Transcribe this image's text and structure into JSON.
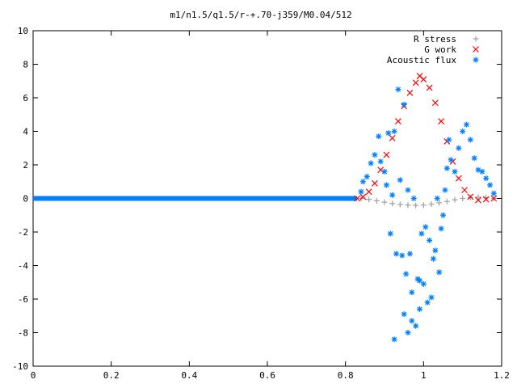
{
  "chart_data": {
    "type": "scatter",
    "title": "m1/n1.5/q1.5/r-+.70-j359/M0.04/512",
    "xlabel": "",
    "ylabel": "",
    "xlim": [
      0,
      1.2
    ],
    "ylim": [
      -10,
      10
    ],
    "grid": false,
    "legend_position": "top-right",
    "x_ticks": [
      "0",
      "0.2",
      "0.4",
      "0.6",
      "0.8",
      "1",
      "1.2"
    ],
    "y_ticks": [
      "10",
      "8",
      "6",
      "4",
      "2",
      "0",
      "-2",
      "-4",
      "-6",
      "-8",
      "-10"
    ],
    "series": [
      {
        "name": "R stress",
        "marker": "plus",
        "color": "#a0a0a0",
        "points": [
          [
            0.84,
            0.0
          ],
          [
            0.86,
            -0.06
          ],
          [
            0.88,
            -0.14
          ],
          [
            0.9,
            -0.22
          ],
          [
            0.92,
            -0.3
          ],
          [
            0.94,
            -0.36
          ],
          [
            0.96,
            -0.4
          ],
          [
            0.98,
            -0.42
          ],
          [
            1.0,
            -0.4
          ],
          [
            1.02,
            -0.34
          ],
          [
            1.04,
            -0.26
          ],
          [
            1.06,
            -0.18
          ],
          [
            1.08,
            -0.08
          ],
          [
            1.1,
            0.0
          ],
          [
            1.12,
            0.05
          ],
          [
            1.14,
            0.08
          ],
          [
            1.16,
            0.05
          ],
          [
            1.18,
            0.0
          ]
        ]
      },
      {
        "name": "G work",
        "marker": "cross",
        "color": "#ff0000",
        "points": [
          [
            0.83,
            0.0
          ],
          [
            0.845,
            0.1
          ],
          [
            0.86,
            0.4
          ],
          [
            0.875,
            0.9
          ],
          [
            0.89,
            1.7
          ],
          [
            0.905,
            2.6
          ],
          [
            0.92,
            3.6
          ],
          [
            0.935,
            4.6
          ],
          [
            0.95,
            5.5
          ],
          [
            0.965,
            6.3
          ],
          [
            0.98,
            6.9
          ],
          [
            0.99,
            7.3
          ],
          [
            1.0,
            7.1
          ],
          [
            1.015,
            6.6
          ],
          [
            1.03,
            5.7
          ],
          [
            1.045,
            4.6
          ],
          [
            1.06,
            3.4
          ],
          [
            1.075,
            2.2
          ],
          [
            1.09,
            1.2
          ],
          [
            1.105,
            0.5
          ],
          [
            1.12,
            0.1
          ],
          [
            1.14,
            -0.1
          ],
          [
            1.16,
            -0.05
          ],
          [
            1.18,
            0.0
          ]
        ]
      },
      {
        "name": "Acoustic flux",
        "marker": "star",
        "color": "#0080ff",
        "points": [
          [
            0.84,
            0.4
          ],
          [
            0.845,
            1.0
          ],
          [
            0.855,
            1.3
          ],
          [
            0.865,
            2.1
          ],
          [
            0.875,
            2.6
          ],
          [
            0.885,
            3.7
          ],
          [
            0.89,
            2.2
          ],
          [
            0.9,
            1.6
          ],
          [
            0.905,
            0.8
          ],
          [
            0.91,
            3.9
          ],
          [
            0.915,
            -2.1
          ],
          [
            0.92,
            0.2
          ],
          [
            0.925,
            4.0
          ],
          [
            0.93,
            -3.3
          ],
          [
            0.935,
            6.5
          ],
          [
            0.94,
            1.1
          ],
          [
            0.945,
            -3.4
          ],
          [
            0.95,
            5.6
          ],
          [
            0.955,
            -4.5
          ],
          [
            0.96,
            0.5
          ],
          [
            0.965,
            -3.3
          ],
          [
            0.97,
            -5.6
          ],
          [
            0.975,
            0.0
          ],
          [
            0.98,
            -7.6
          ],
          [
            0.985,
            -4.8
          ],
          [
            0.99,
            -4.9
          ],
          [
            0.995,
            -2.1
          ],
          [
            1.0,
            -5.1
          ],
          [
            1.005,
            -1.7
          ],
          [
            1.01,
            -6.2
          ],
          [
            1.015,
            -2.5
          ],
          [
            1.02,
            -5.9
          ],
          [
            1.025,
            -3.6
          ],
          [
            1.03,
            -3.1
          ],
          [
            1.035,
            0.0
          ],
          [
            1.04,
            -4.4
          ],
          [
            1.045,
            -1.8
          ],
          [
            1.05,
            -1.0
          ],
          [
            1.055,
            0.5
          ],
          [
            1.06,
            1.8
          ],
          [
            1.065,
            3.5
          ],
          [
            1.07,
            2.3
          ],
          [
            1.08,
            1.6
          ],
          [
            1.09,
            3.0
          ],
          [
            1.1,
            4.0
          ],
          [
            1.11,
            4.4
          ],
          [
            1.12,
            3.5
          ],
          [
            1.13,
            2.4
          ],
          [
            1.14,
            1.7
          ],
          [
            1.15,
            1.6
          ],
          [
            1.16,
            1.2
          ],
          [
            1.17,
            0.8
          ],
          [
            1.18,
            0.3
          ],
          [
            0.925,
            -8.4
          ],
          [
            0.96,
            -8.0
          ],
          [
            0.97,
            -7.3
          ],
          [
            0.99,
            -6.6
          ],
          [
            0.95,
            -6.9
          ]
        ]
      }
    ],
    "flat_segment": {
      "x_start": 0.0,
      "x_end": 0.83,
      "y": 0.0,
      "color": "#0080ff"
    }
  }
}
